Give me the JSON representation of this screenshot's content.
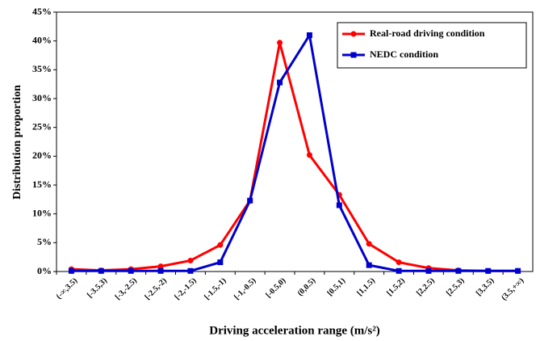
{
  "chart_data": {
    "type": "line",
    "x_label": "Driving acceleration range (m/s²)",
    "y_label": "Distribution  proportion",
    "categories": [
      "(-∞,3.5)",
      "[-3.5,3)",
      "[-3,-2.5)",
      "[-2.5,-2)",
      "[-2,-1.5)",
      "[-1.5,-1)",
      "[-1,-0.5)",
      "[-0.5,0)",
      "(0,0.5)",
      "[0.5,1)",
      "[1,1.5)",
      "[1.5,2)",
      "[2,2.5)",
      "[2.5,3)",
      "[3,3.5)",
      "(3.5,+∞)"
    ],
    "series": [
      {
        "name": "Real-road driving condition",
        "color": "#ff0000",
        "marker": "circle",
        "values": [
          0.4,
          0.2,
          0.4,
          0.9,
          1.9,
          4.6,
          12.3,
          39.7,
          20.2,
          13.3,
          4.8,
          1.6,
          0.6,
          0.2,
          0.1,
          0.1
        ]
      },
      {
        "name": "NEDC condition",
        "color": "#0000cc",
        "marker": "square",
        "values": [
          0.1,
          0.1,
          0.1,
          0.1,
          0.1,
          1.6,
          12.3,
          32.8,
          41,
          11.5,
          1.1,
          0.1,
          0.1,
          0.1,
          0.1,
          0.1
        ]
      }
    ],
    "ylim": [
      0,
      45
    ],
    "yticks": [
      {
        "value": 0,
        "label": "0%"
      },
      {
        "value": 5,
        "label": "5%"
      },
      {
        "value": 10,
        "label": "10%"
      },
      {
        "value": 15,
        "label": "15%"
      },
      {
        "value": 20,
        "label": "20%"
      },
      {
        "value": 25,
        "label": "25%"
      },
      {
        "value": 30,
        "label": "30%"
      },
      {
        "value": 35,
        "label": "35%"
      },
      {
        "value": 40,
        "label": "40%"
      },
      {
        "value": 45,
        "label": "45%"
      }
    ],
    "legend": "upper right"
  }
}
